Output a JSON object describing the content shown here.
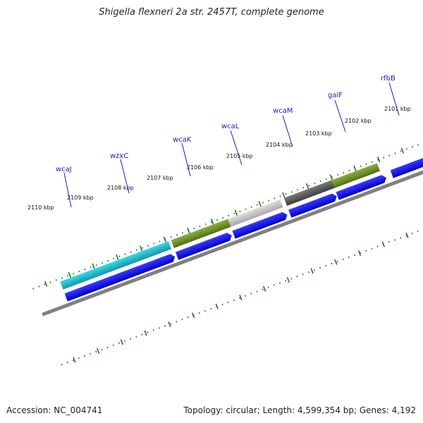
{
  "title": "Shigella flexneri 2a str. 2457T, complete genome",
  "footer": {
    "accession": "Accession: NC_004741",
    "summary": "Topology: circular; Length: 4,599,354 bp; Genes: 4,192"
  },
  "colors": {
    "cds_arrow": "#0a0af0",
    "olive": "#6b8e23",
    "cyan": "#12b5c8",
    "light_gray": "#bdbdbd",
    "dark_gray": "#5a5a5a",
    "backbone": "#808080",
    "tick": "#1f7a1f",
    "label": "#1a1acc"
  },
  "scale_labels": [
    "2101 kbp",
    "2102 kbp",
    "2103 kbp",
    "2104 kbp",
    "2105 kbp",
    "2106 kbp",
    "2107 kbp",
    "2108 kbp",
    "2109 kbp",
    "2110 kbp"
  ],
  "gene_labels": [
    "rfbB",
    "galF",
    "wcaM",
    "wcaL",
    "wcaK",
    "wzxC",
    "wcaJ"
  ]
}
